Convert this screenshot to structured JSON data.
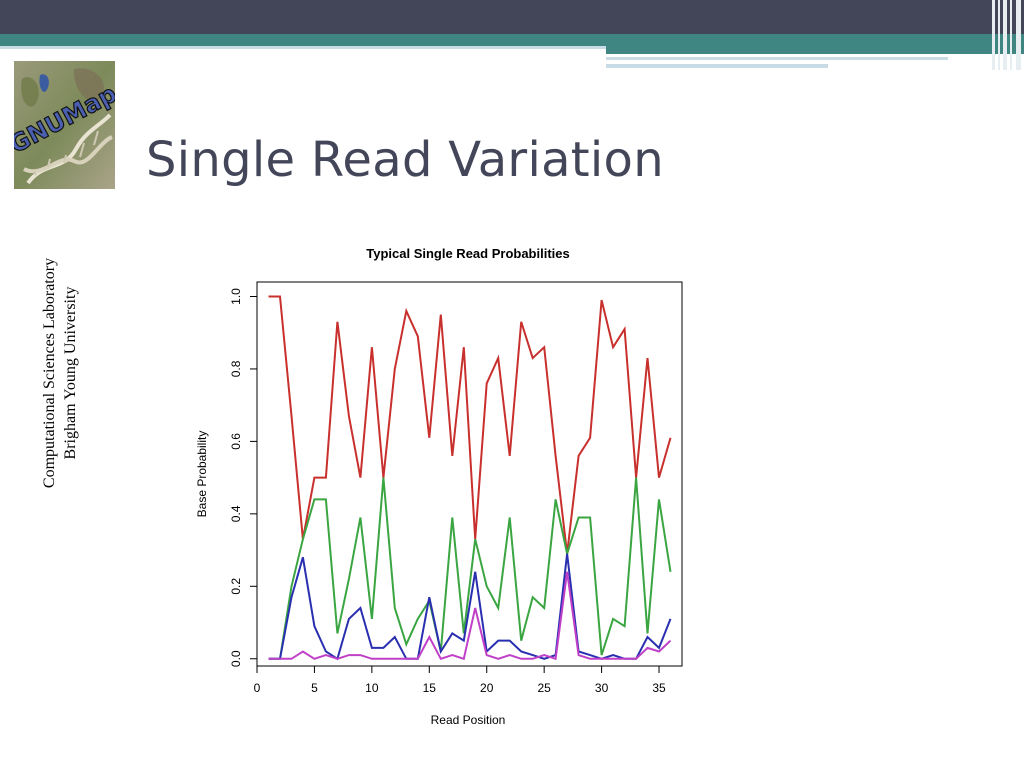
{
  "slide": {
    "title": "Single Read Variation",
    "logo_text": "GNUMap",
    "side_label_line1": "Computational Sciences Laboratory",
    "side_label_line2": "Brigham Young University"
  },
  "colors": {
    "header_dark": "#434659",
    "header_teal": "#3f8683",
    "header_pale": "#c9dbe4"
  },
  "chart_data": {
    "type": "line",
    "title": "Typical Single Read Probabilities",
    "xlabel": "Read Position",
    "ylabel": "Base Probability",
    "xlim": [
      0,
      37
    ],
    "ylim": [
      -0.02,
      1.04
    ],
    "xticks": [
      0,
      5,
      10,
      15,
      20,
      25,
      30,
      35
    ],
    "yticks": [
      0.0,
      0.2,
      0.4,
      0.6,
      0.8,
      1.0
    ],
    "ytick_labels": [
      "0.0",
      "0.2",
      "0.4",
      "0.6",
      "0.8",
      "1.0"
    ],
    "x": [
      1,
      2,
      3,
      4,
      5,
      6,
      7,
      8,
      9,
      10,
      11,
      12,
      13,
      14,
      15,
      16,
      17,
      18,
      19,
      20,
      21,
      22,
      23,
      24,
      25,
      26,
      27,
      28,
      29,
      30,
      31,
      32,
      33,
      34,
      35,
      36
    ],
    "series": [
      {
        "name": "red",
        "color": "#c8302d",
        "values": [
          1.0,
          1.0,
          0.67,
          0.33,
          0.5,
          0.5,
          0.93,
          0.67,
          0.5,
          0.86,
          0.5,
          0.8,
          0.96,
          0.89,
          0.61,
          0.95,
          0.56,
          0.86,
          0.33,
          0.76,
          0.83,
          0.56,
          0.93,
          0.83,
          0.86,
          0.56,
          0.29,
          0.56,
          0.61,
          0.99,
          0.86,
          0.91,
          0.5,
          0.83,
          0.5,
          0.61
        ]
      },
      {
        "name": "green",
        "color": "#3aa541",
        "values": [
          0.0,
          0.0,
          0.2,
          0.33,
          0.44,
          0.44,
          0.07,
          0.22,
          0.39,
          0.11,
          0.5,
          0.14,
          0.04,
          0.11,
          0.16,
          0.02,
          0.39,
          0.07,
          0.33,
          0.2,
          0.14,
          0.39,
          0.05,
          0.17,
          0.14,
          0.44,
          0.29,
          0.39,
          0.39,
          0.01,
          0.11,
          0.09,
          0.5,
          0.07,
          0.44,
          0.24
        ]
      },
      {
        "name": "blue",
        "color": "#2a2fb0",
        "values": [
          0.0,
          0.0,
          0.17,
          0.28,
          0.09,
          0.02,
          0.0,
          0.11,
          0.14,
          0.03,
          0.03,
          0.06,
          0.0,
          0.0,
          0.17,
          0.02,
          0.07,
          0.05,
          0.24,
          0.02,
          0.05,
          0.05,
          0.02,
          0.01,
          0.0,
          0.01,
          0.29,
          0.02,
          0.01,
          0.0,
          0.01,
          0.0,
          0.0,
          0.06,
          0.03,
          0.11
        ]
      },
      {
        "name": "magenta",
        "color": "#c040c8",
        "values": [
          0.0,
          0.0,
          0.0,
          0.02,
          0.0,
          0.01,
          0.0,
          0.01,
          0.01,
          0.0,
          0.0,
          0.0,
          0.0,
          0.0,
          0.06,
          0.0,
          0.01,
          0.0,
          0.14,
          0.01,
          0.0,
          0.01,
          0.0,
          0.0,
          0.01,
          0.0,
          0.24,
          0.01,
          0.0,
          0.0,
          0.0,
          0.0,
          0.0,
          0.03,
          0.02,
          0.05
        ]
      }
    ]
  }
}
